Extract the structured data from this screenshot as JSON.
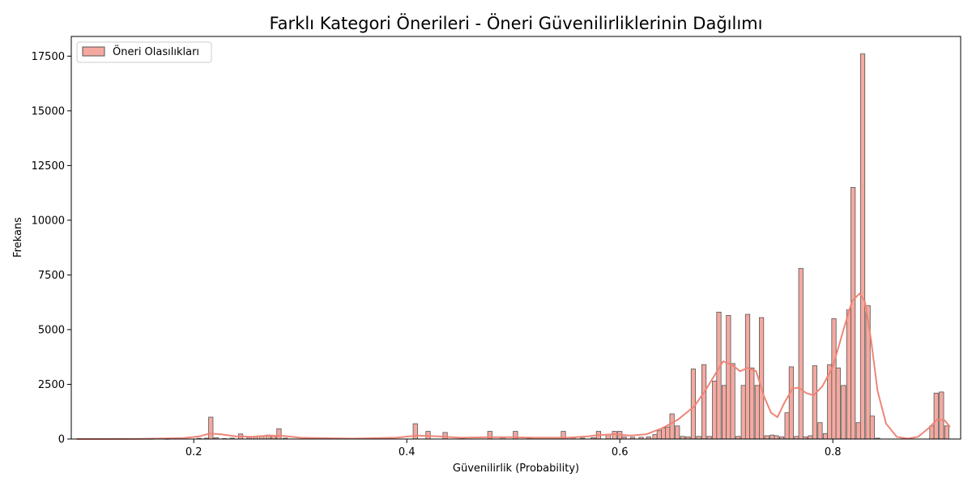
{
  "chart_data": {
    "type": "histogram",
    "title": "Farklı Kategori Önerileri - Öneri Güvenilirliklerinin Dağılımı",
    "xlabel": "Güvenilirlik (Probability)",
    "ylabel": "Frekans",
    "xlim": [
      0.085,
      0.92
    ],
    "ylim": [
      0,
      18400
    ],
    "xticks": [
      0.2,
      0.4,
      0.6,
      0.8
    ],
    "xtick_labels": [
      "0.2",
      "0.4",
      "0.6",
      "0.8"
    ],
    "yticks": [
      0,
      2500,
      5000,
      7500,
      10000,
      12500,
      15000,
      17500
    ],
    "ytick_labels": [
      "0",
      "2500",
      "5000",
      "7500",
      "10000",
      "12500",
      "15000",
      "17500"
    ],
    "legend": {
      "placement": "top-left",
      "entries": [
        "Öneri Olasılıkları"
      ]
    },
    "colors": {
      "bar_fill": "#f4a9a0",
      "bar_edge": "#555555",
      "kde_line": "#ef8577"
    },
    "grid": false,
    "bin_width": 0.0041,
    "bins": [
      {
        "x": 0.095,
        "y": 8
      },
      {
        "x": 0.13,
        "y": 8
      },
      {
        "x": 0.16,
        "y": 10
      },
      {
        "x": 0.175,
        "y": 8
      },
      {
        "x": 0.205,
        "y": 30
      },
      {
        "x": 0.212,
        "y": 40
      },
      {
        "x": 0.216,
        "y": 1000
      },
      {
        "x": 0.221,
        "y": 60
      },
      {
        "x": 0.229,
        "y": 20
      },
      {
        "x": 0.236,
        "y": 40
      },
      {
        "x": 0.244,
        "y": 230
      },
      {
        "x": 0.252,
        "y": 80
      },
      {
        "x": 0.258,
        "y": 100
      },
      {
        "x": 0.264,
        "y": 140
      },
      {
        "x": 0.27,
        "y": 180
      },
      {
        "x": 0.275,
        "y": 150
      },
      {
        "x": 0.28,
        "y": 470
      },
      {
        "x": 0.286,
        "y": 40
      },
      {
        "x": 0.408,
        "y": 700
      },
      {
        "x": 0.42,
        "y": 350
      },
      {
        "x": 0.436,
        "y": 300
      },
      {
        "x": 0.452,
        "y": 40
      },
      {
        "x": 0.478,
        "y": 350
      },
      {
        "x": 0.49,
        "y": 60
      },
      {
        "x": 0.502,
        "y": 350
      },
      {
        "x": 0.515,
        "y": 40
      },
      {
        "x": 0.547,
        "y": 350
      },
      {
        "x": 0.556,
        "y": 60
      },
      {
        "x": 0.565,
        "y": 40
      },
      {
        "x": 0.575,
        "y": 60
      },
      {
        "x": 0.58,
        "y": 350
      },
      {
        "x": 0.589,
        "y": 200
      },
      {
        "x": 0.595,
        "y": 350
      },
      {
        "x": 0.6,
        "y": 350
      },
      {
        "x": 0.604,
        "y": 100
      },
      {
        "x": 0.612,
        "y": 80
      },
      {
        "x": 0.62,
        "y": 80
      },
      {
        "x": 0.627,
        "y": 100
      },
      {
        "x": 0.633,
        "y": 200
      },
      {
        "x": 0.637,
        "y": 380
      },
      {
        "x": 0.641,
        "y": 500
      },
      {
        "x": 0.645,
        "y": 550
      },
      {
        "x": 0.649,
        "y": 1150
      },
      {
        "x": 0.654,
        "y": 600
      },
      {
        "x": 0.659,
        "y": 120
      },
      {
        "x": 0.664,
        "y": 100
      },
      {
        "x": 0.669,
        "y": 3200
      },
      {
        "x": 0.674,
        "y": 120
      },
      {
        "x": 0.679,
        "y": 3400
      },
      {
        "x": 0.684,
        "y": 120
      },
      {
        "x": 0.689,
        "y": 2650
      },
      {
        "x": 0.693,
        "y": 5800
      },
      {
        "x": 0.698,
        "y": 2450
      },
      {
        "x": 0.702,
        "y": 5650
      },
      {
        "x": 0.706,
        "y": 3450
      },
      {
        "x": 0.711,
        "y": 120
      },
      {
        "x": 0.716,
        "y": 2450
      },
      {
        "x": 0.72,
        "y": 5700
      },
      {
        "x": 0.724,
        "y": 3250
      },
      {
        "x": 0.729,
        "y": 2450
      },
      {
        "x": 0.733,
        "y": 5550
      },
      {
        "x": 0.738,
        "y": 150
      },
      {
        "x": 0.743,
        "y": 180
      },
      {
        "x": 0.747,
        "y": 150
      },
      {
        "x": 0.752,
        "y": 100
      },
      {
        "x": 0.757,
        "y": 1200
      },
      {
        "x": 0.761,
        "y": 3300
      },
      {
        "x": 0.766,
        "y": 120
      },
      {
        "x": 0.77,
        "y": 7800
      },
      {
        "x": 0.774,
        "y": 100
      },
      {
        "x": 0.779,
        "y": 150
      },
      {
        "x": 0.783,
        "y": 3350
      },
      {
        "x": 0.788,
        "y": 750
      },
      {
        "x": 0.793,
        "y": 250
      },
      {
        "x": 0.797,
        "y": 3400
      },
      {
        "x": 0.801,
        "y": 5500
      },
      {
        "x": 0.805,
        "y": 3250
      },
      {
        "x": 0.81,
        "y": 2450
      },
      {
        "x": 0.815,
        "y": 5900
      },
      {
        "x": 0.819,
        "y": 11500
      },
      {
        "x": 0.824,
        "y": 750
      },
      {
        "x": 0.828,
        "y": 17600
      },
      {
        "x": 0.833,
        "y": 6100
      },
      {
        "x": 0.837,
        "y": 1050
      },
      {
        "x": 0.842,
        "y": 40
      },
      {
        "x": 0.893,
        "y": 600
      },
      {
        "x": 0.897,
        "y": 2100
      },
      {
        "x": 0.902,
        "y": 2150
      },
      {
        "x": 0.907,
        "y": 600
      }
    ],
    "kde": {
      "x": [
        0.09,
        0.15,
        0.19,
        0.205,
        0.215,
        0.225,
        0.24,
        0.255,
        0.27,
        0.285,
        0.3,
        0.35,
        0.39,
        0.41,
        0.43,
        0.45,
        0.48,
        0.5,
        0.52,
        0.55,
        0.57,
        0.58,
        0.595,
        0.61,
        0.625,
        0.64,
        0.655,
        0.67,
        0.68,
        0.69,
        0.697,
        0.705,
        0.713,
        0.72,
        0.728,
        0.735,
        0.742,
        0.748,
        0.755,
        0.762,
        0.768,
        0.775,
        0.782,
        0.79,
        0.8,
        0.81,
        0.818,
        0.825,
        0.83,
        0.836,
        0.842,
        0.85,
        0.86,
        0.87,
        0.88,
        0.89,
        0.898,
        0.905,
        0.91
      ],
      "y": [
        0,
        5,
        40,
        120,
        250,
        220,
        120,
        100,
        160,
        140,
        60,
        20,
        60,
        160,
        120,
        60,
        80,
        80,
        60,
        60,
        120,
        180,
        220,
        160,
        220,
        500,
        900,
        1500,
        2200,
        3000,
        3550,
        3400,
        3100,
        3250,
        3100,
        2000,
        1200,
        1000,
        1700,
        2300,
        2350,
        2100,
        2000,
        2400,
        3300,
        5000,
        6300,
        6650,
        6300,
        4500,
        2200,
        700,
        100,
        20,
        100,
        500,
        900,
        850,
        550
      ]
    }
  }
}
